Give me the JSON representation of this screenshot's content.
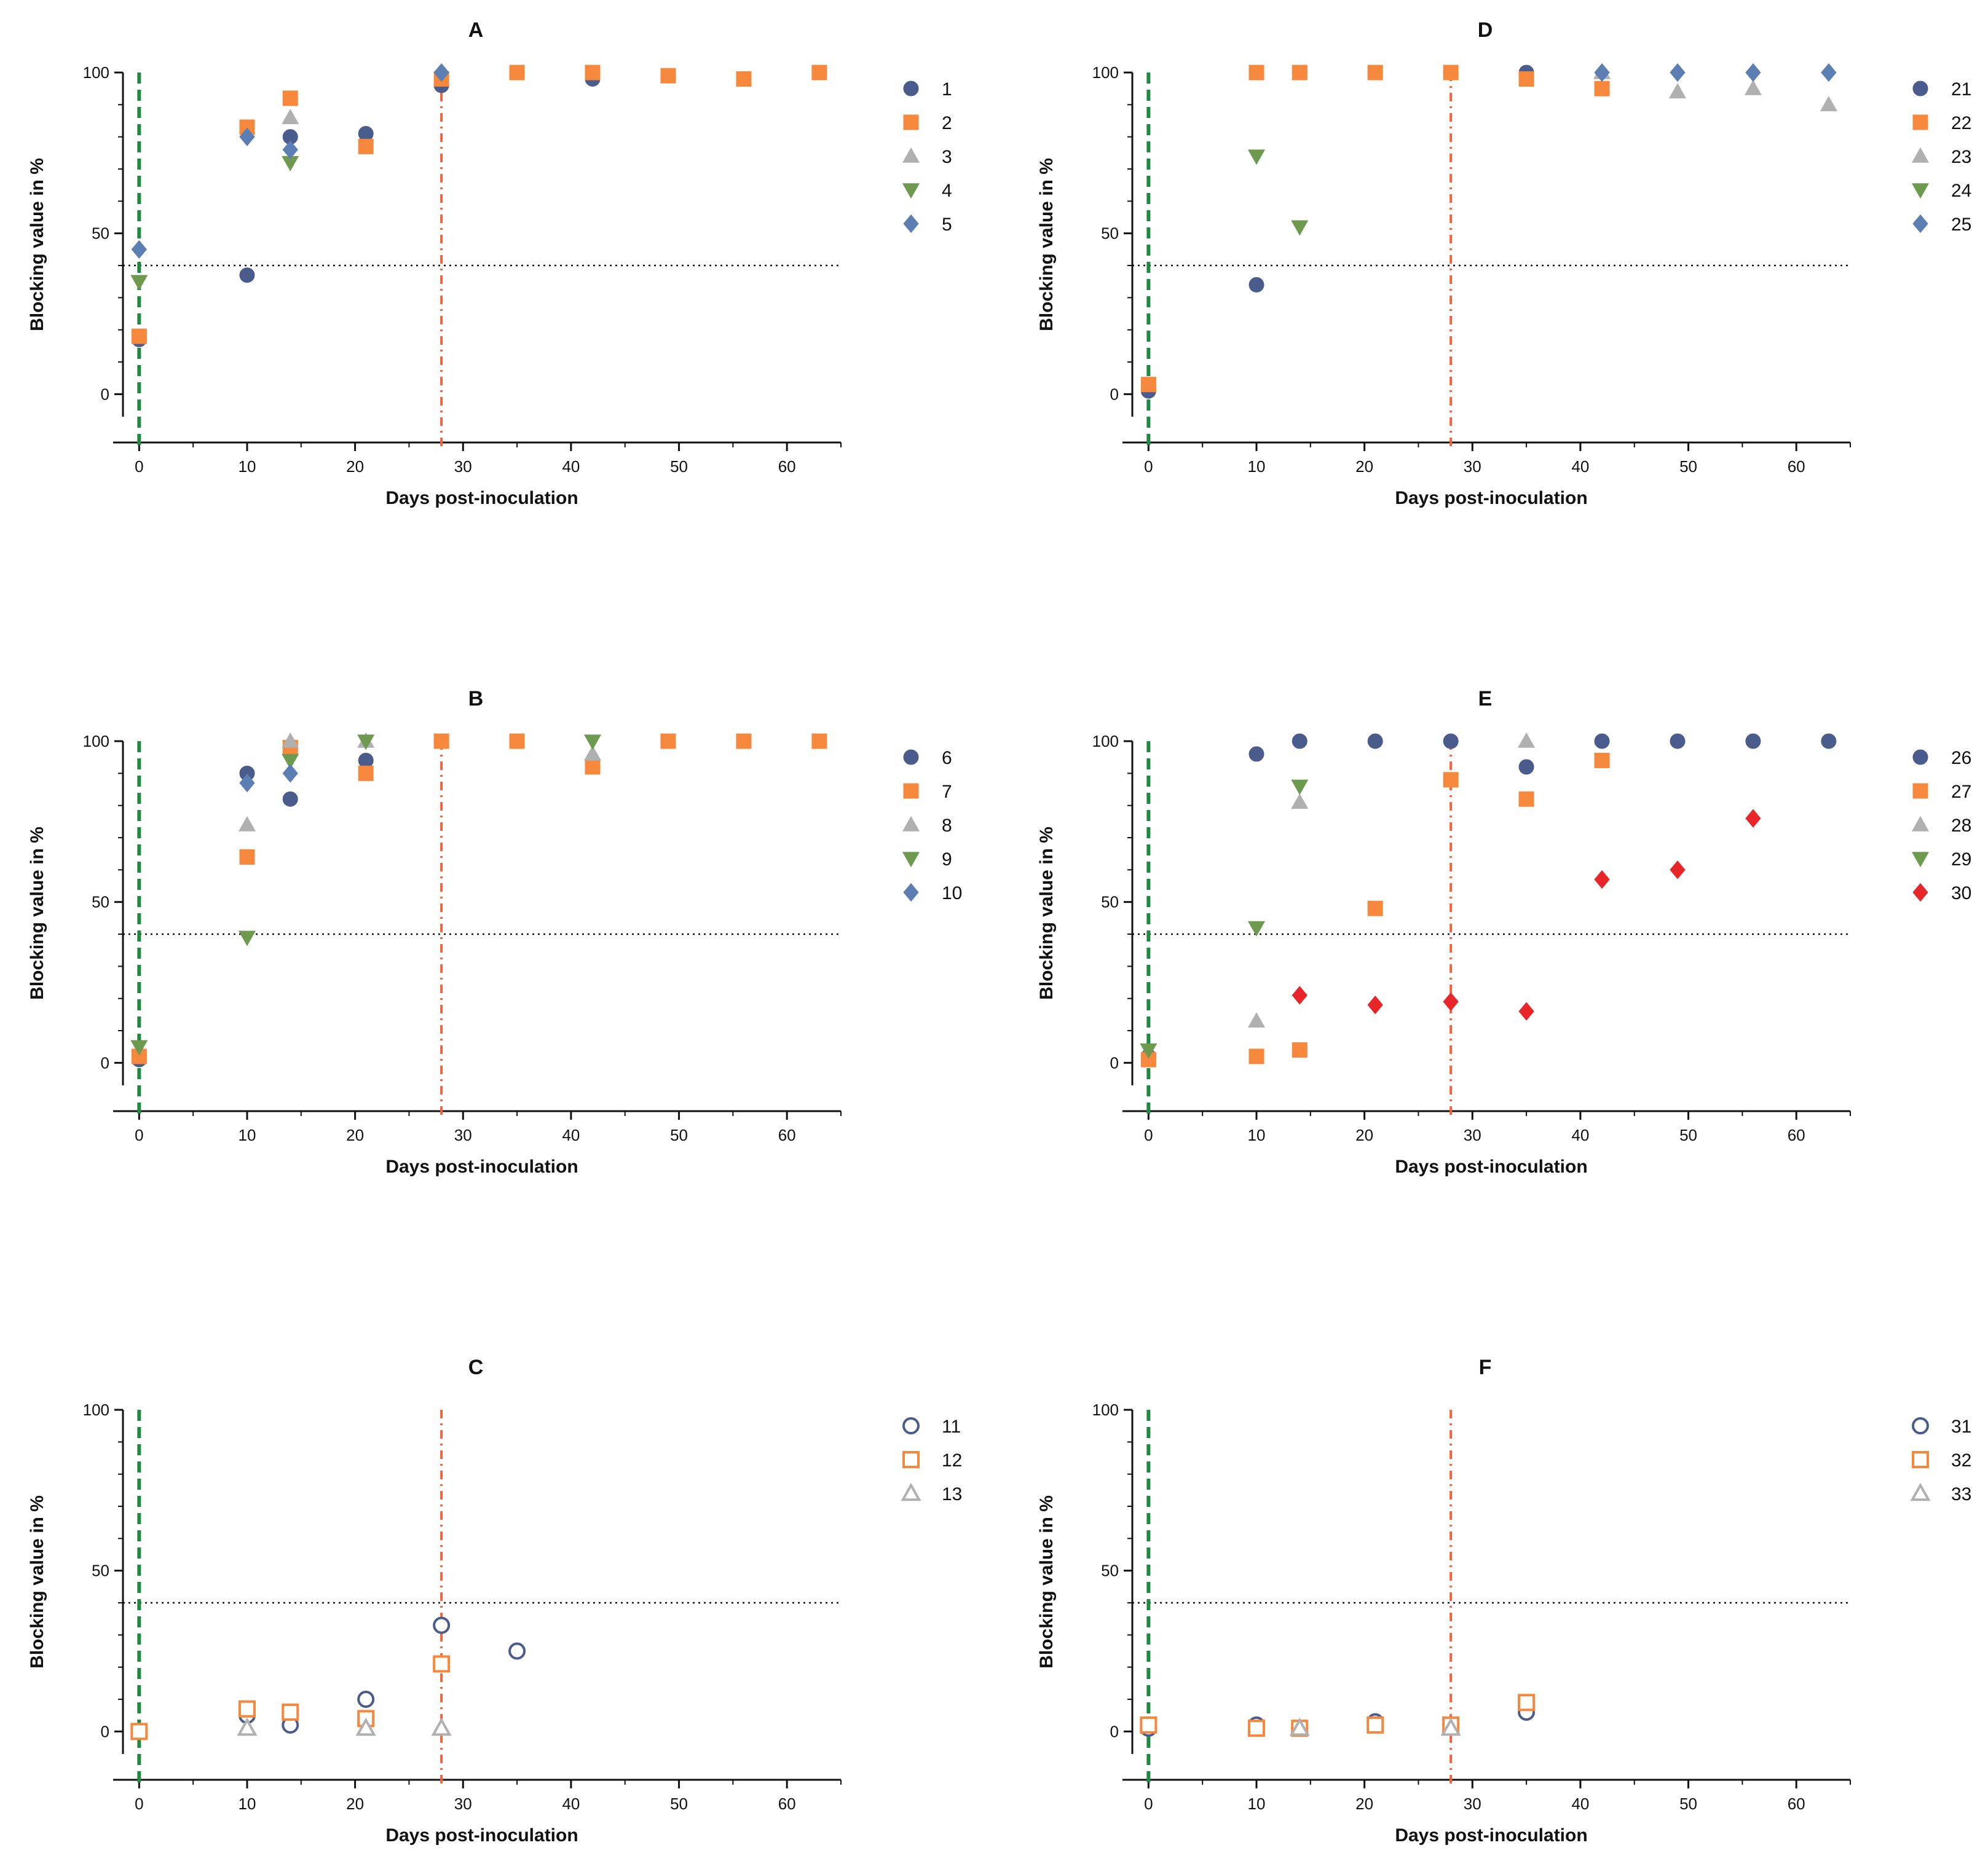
{
  "figure": {
    "x_axis_label": "Days post-inoculation",
    "y_axis_label": "Blocking value in %",
    "threshold_line_value": 40,
    "inoculation_day": 0,
    "boost_day": 28
  },
  "chart_data": [
    {
      "type": "scatter",
      "title": "A",
      "xlabel": "Days post-inoculation",
      "ylabel": "Blocking value in %",
      "xlim": [
        -1.5,
        65
      ],
      "ylim": [
        -7,
        100
      ],
      "xticks": [
        0,
        10,
        20,
        30,
        40,
        50,
        60
      ],
      "yticks": [
        0,
        50,
        100
      ],
      "threshold": 40,
      "vlines": [
        {
          "x": 0,
          "color": "#1e8a3e",
          "style": "dashed"
        },
        {
          "x": 28,
          "color": "#f0643c",
          "style": "dashdot"
        }
      ],
      "series": [
        {
          "name": "1",
          "marker": "circle",
          "color": "#4a5c8c",
          "filled": true,
          "points": [
            [
              0,
              17
            ],
            [
              10,
              37
            ],
            [
              14,
              80
            ],
            [
              21,
              81
            ],
            [
              28,
              96
            ],
            [
              35,
              100
            ],
            [
              42,
              98
            ],
            [
              49,
              99
            ]
          ]
        },
        {
          "name": "2",
          "marker": "square",
          "color": "#f5883c",
          "filled": true,
          "points": [
            [
              0,
              18
            ],
            [
              10,
              83
            ],
            [
              14,
              92
            ],
            [
              21,
              77
            ],
            [
              28,
              98
            ],
            [
              35,
              100
            ],
            [
              42,
              100
            ],
            [
              49,
              99
            ],
            [
              56,
              98
            ],
            [
              63,
              100
            ]
          ]
        },
        {
          "name": "3",
          "marker": "triangle",
          "color": "#b0b0b0",
          "filled": true,
          "points": [
            [
              14,
              86
            ]
          ]
        },
        {
          "name": "4",
          "marker": "triangle-down",
          "color": "#6e9a50",
          "filled": true,
          "points": [
            [
              0,
              35
            ],
            [
              14,
              72
            ]
          ]
        },
        {
          "name": "5",
          "marker": "diamond",
          "color": "#5b7fb3",
          "filled": true,
          "points": [
            [
              0,
              45
            ],
            [
              10,
              80
            ],
            [
              14,
              76
            ],
            [
              28,
              100
            ]
          ]
        }
      ]
    },
    {
      "type": "scatter",
      "title": "D",
      "xlabel": "Days post-inoculation",
      "ylabel": "Blocking value in %",
      "xlim": [
        -1.5,
        65
      ],
      "ylim": [
        -7,
        100
      ],
      "xticks": [
        0,
        10,
        20,
        30,
        40,
        50,
        60
      ],
      "yticks": [
        0,
        50,
        100
      ],
      "threshold": 40,
      "vlines": [
        {
          "x": 0,
          "color": "#1e8a3e",
          "style": "dashed"
        },
        {
          "x": 28,
          "color": "#f0643c",
          "style": "dashdot"
        }
      ],
      "series": [
        {
          "name": "21",
          "marker": "circle",
          "color": "#4a5c8c",
          "filled": true,
          "points": [
            [
              0,
              1
            ],
            [
              10,
              34
            ],
            [
              14,
              100
            ],
            [
              21,
              100
            ],
            [
              28,
              100
            ],
            [
              35,
              100
            ]
          ]
        },
        {
          "name": "22",
          "marker": "square",
          "color": "#f5883c",
          "filled": true,
          "points": [
            [
              0,
              3
            ],
            [
              10,
              100
            ],
            [
              14,
              100
            ],
            [
              21,
              100
            ],
            [
              28,
              100
            ],
            [
              35,
              98
            ],
            [
              42,
              95
            ]
          ]
        },
        {
          "name": "23",
          "marker": "triangle",
          "color": "#b0b0b0",
          "filled": true,
          "points": [
            [
              42,
              100
            ],
            [
              49,
              94
            ],
            [
              56,
              95
            ],
            [
              63,
              90
            ]
          ]
        },
        {
          "name": "24",
          "marker": "triangle-down",
          "color": "#6e9a50",
          "filled": true,
          "points": [
            [
              10,
              74
            ],
            [
              14,
              52
            ]
          ]
        },
        {
          "name": "25",
          "marker": "diamond",
          "color": "#5b7fb3",
          "filled": true,
          "points": [
            [
              42,
              100
            ],
            [
              49,
              100
            ],
            [
              56,
              100
            ],
            [
              63,
              100
            ]
          ]
        }
      ]
    },
    {
      "type": "scatter",
      "title": "B",
      "xlabel": "Days post-inoculation",
      "ylabel": "Blocking value in %",
      "xlim": [
        -1.5,
        65
      ],
      "ylim": [
        -7,
        100
      ],
      "xticks": [
        0,
        10,
        20,
        30,
        40,
        50,
        60
      ],
      "yticks": [
        0,
        50,
        100
      ],
      "threshold": 40,
      "vlines": [
        {
          "x": 0,
          "color": "#1e8a3e",
          "style": "dashed"
        },
        {
          "x": 28,
          "color": "#f0643c",
          "style": "dashdot"
        }
      ],
      "series": [
        {
          "name": "6",
          "marker": "circle",
          "color": "#4a5c8c",
          "filled": true,
          "points": [
            [
              0,
              1
            ],
            [
              10,
              90
            ],
            [
              14,
              82
            ],
            [
              21,
              94
            ],
            [
              28,
              100
            ],
            [
              35,
              100
            ]
          ]
        },
        {
          "name": "7",
          "marker": "square",
          "color": "#f5883c",
          "filled": true,
          "points": [
            [
              0,
              2
            ],
            [
              10,
              64
            ],
            [
              14,
              98
            ],
            [
              21,
              90
            ],
            [
              28,
              100
            ],
            [
              35,
              100
            ],
            [
              42,
              92
            ],
            [
              49,
              100
            ],
            [
              56,
              100
            ],
            [
              63,
              100
            ]
          ]
        },
        {
          "name": "8",
          "marker": "triangle",
          "color": "#b0b0b0",
          "filled": true,
          "points": [
            [
              10,
              74
            ],
            [
              14,
              100
            ],
            [
              21,
              100
            ],
            [
              42,
              96
            ]
          ]
        },
        {
          "name": "9",
          "marker": "triangle-down",
          "color": "#6e9a50",
          "filled": true,
          "points": [
            [
              0,
              5
            ],
            [
              10,
              39
            ],
            [
              14,
              94
            ],
            [
              21,
              100
            ],
            [
              42,
              100
            ]
          ]
        },
        {
          "name": "10",
          "marker": "diamond",
          "color": "#5b7fb3",
          "filled": true,
          "points": [
            [
              10,
              87
            ],
            [
              14,
              90
            ]
          ]
        }
      ]
    },
    {
      "type": "scatter",
      "title": "E",
      "xlabel": "Days post-inoculation",
      "ylabel": "Blocking value in %",
      "xlim": [
        -1.5,
        65
      ],
      "ylim": [
        -7,
        100
      ],
      "xticks": [
        0,
        10,
        20,
        30,
        40,
        50,
        60
      ],
      "yticks": [
        0,
        50,
        100
      ],
      "threshold": 40,
      "vlines": [
        {
          "x": 0,
          "color": "#1e8a3e",
          "style": "dashed"
        },
        {
          "x": 28,
          "color": "#f0643c",
          "style": "dashdot"
        }
      ],
      "series": [
        {
          "name": "26",
          "marker": "circle",
          "color": "#4a5c8c",
          "filled": true,
          "points": [
            [
              0,
              2
            ],
            [
              10,
              96
            ],
            [
              14,
              100
            ],
            [
              21,
              100
            ],
            [
              28,
              100
            ],
            [
              35,
              92
            ],
            [
              42,
              100
            ],
            [
              49,
              100
            ],
            [
              56,
              100
            ],
            [
              63,
              100
            ]
          ]
        },
        {
          "name": "27",
          "marker": "square",
          "color": "#f5883c",
          "filled": true,
          "points": [
            [
              0,
              1
            ],
            [
              10,
              2
            ],
            [
              14,
              4
            ],
            [
              21,
              48
            ],
            [
              28,
              88
            ],
            [
              35,
              82
            ],
            [
              42,
              94
            ]
          ]
        },
        {
          "name": "28",
          "marker": "triangle",
          "color": "#b0b0b0",
          "filled": true,
          "points": [
            [
              10,
              13
            ],
            [
              14,
              81
            ],
            [
              35,
              100
            ]
          ]
        },
        {
          "name": "29",
          "marker": "triangle-down",
          "color": "#6e9a50",
          "filled": true,
          "points": [
            [
              0,
              4
            ],
            [
              10,
              42
            ],
            [
              14,
              86
            ]
          ]
        },
        {
          "name": "30",
          "marker": "diamond",
          "color": "#e8262a",
          "filled": true,
          "points": [
            [
              14,
              21
            ],
            [
              21,
              18
            ],
            [
              28,
              19
            ],
            [
              35,
              16
            ],
            [
              42,
              57
            ],
            [
              49,
              60
            ],
            [
              56,
              76
            ]
          ]
        }
      ]
    },
    {
      "type": "scatter",
      "title": "C",
      "xlabel": "Days post-inoculation",
      "ylabel": "Blocking value in %",
      "xlim": [
        -1.5,
        65
      ],
      "ylim": [
        -7,
        100
      ],
      "xticks": [
        0,
        10,
        20,
        30,
        40,
        50,
        60
      ],
      "yticks": [
        0,
        50,
        100
      ],
      "threshold": 40,
      "vlines": [
        {
          "x": 0,
          "color": "#1e8a3e",
          "style": "dashed"
        },
        {
          "x": 28,
          "color": "#f0643c",
          "style": "dashdot"
        }
      ],
      "series": [
        {
          "name": "11",
          "marker": "circle",
          "color": "#4a5c8c",
          "filled": false,
          "points": [
            [
              0,
              0
            ],
            [
              10,
              5
            ],
            [
              14,
              2
            ],
            [
              21,
              10
            ],
            [
              28,
              33
            ],
            [
              35,
              25
            ]
          ]
        },
        {
          "name": "12",
          "marker": "square",
          "color": "#f5883c",
          "filled": false,
          "points": [
            [
              0,
              0
            ],
            [
              10,
              7
            ],
            [
              14,
              6
            ],
            [
              21,
              4
            ],
            [
              28,
              21
            ]
          ]
        },
        {
          "name": "13",
          "marker": "triangle",
          "color": "#b0b0b0",
          "filled": false,
          "points": [
            [
              10,
              1
            ],
            [
              21,
              1
            ],
            [
              28,
              1
            ]
          ]
        }
      ]
    },
    {
      "type": "scatter",
      "title": "F",
      "xlabel": "Days post-inoculation",
      "ylabel": "Blocking value in %",
      "xlim": [
        -1.5,
        65
      ],
      "ylim": [
        -7,
        100
      ],
      "xticks": [
        0,
        10,
        20,
        30,
        40,
        50,
        60
      ],
      "yticks": [
        0,
        50,
        100
      ],
      "threshold": 40,
      "vlines": [
        {
          "x": 0,
          "color": "#1e8a3e",
          "style": "dashed"
        },
        {
          "x": 28,
          "color": "#f0643c",
          "style": "dashdot"
        }
      ],
      "series": [
        {
          "name": "31",
          "marker": "circle",
          "color": "#4a5c8c",
          "filled": false,
          "points": [
            [
              0,
              1
            ],
            [
              10,
              2
            ],
            [
              14,
              1
            ],
            [
              21,
              3
            ],
            [
              28,
              2
            ],
            [
              35,
              6
            ]
          ]
        },
        {
          "name": "32",
          "marker": "square",
          "color": "#f5883c",
          "filled": false,
          "points": [
            [
              0,
              2
            ],
            [
              10,
              1
            ],
            [
              14,
              1
            ],
            [
              21,
              2
            ],
            [
              28,
              2
            ],
            [
              35,
              9
            ]
          ]
        },
        {
          "name": "33",
          "marker": "triangle",
          "color": "#b0b0b0",
          "filled": false,
          "points": [
            [
              14,
              1
            ],
            [
              28,
              1
            ]
          ]
        }
      ]
    }
  ]
}
